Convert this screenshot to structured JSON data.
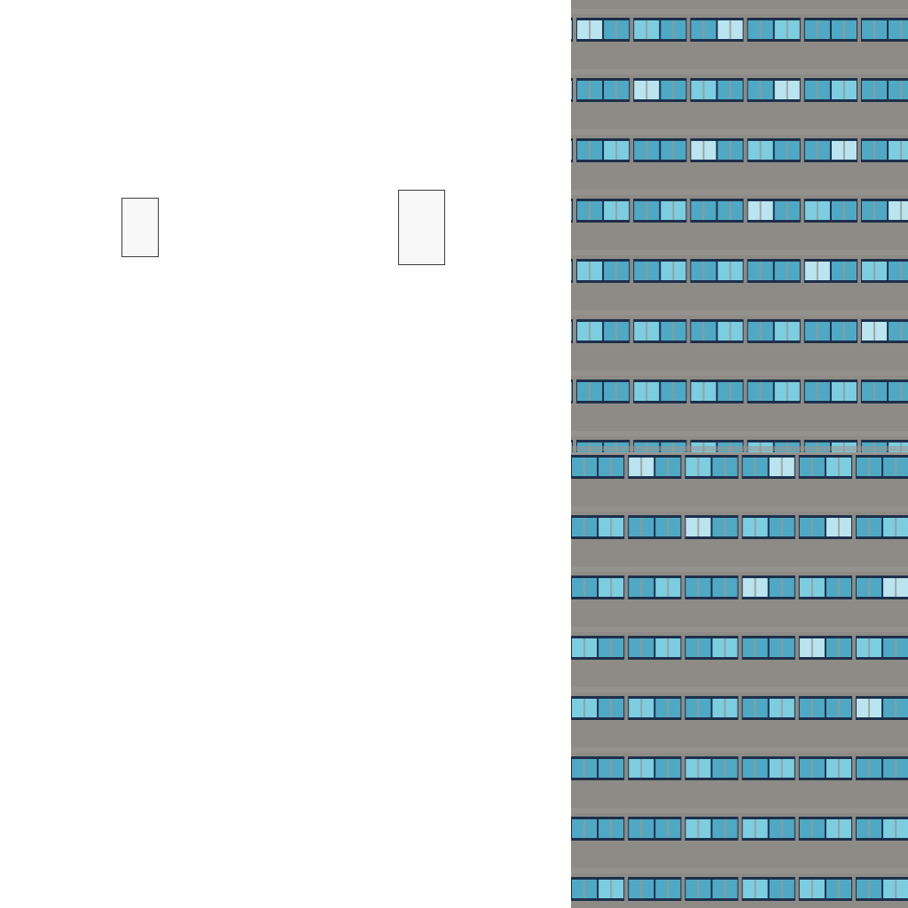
{
  "image": {
    "left_panel": {
      "background_color": "#ffffff",
      "placeholder_frames": [
        {
          "name": "small-blank-frame"
        },
        {
          "name": "large-blank-frame"
        }
      ]
    },
    "right_panel": {
      "subject": "building-facade-texture",
      "concrete_color": "#8e8b86",
      "concrete_light_color": "#9a9792",
      "mullion_color": "#1c2f4a",
      "glass_color": "#4fa9c4",
      "glass_light_color": "#7ccde0",
      "glass_highlight_color": "#b9e4f0",
      "tile_count": 2
    }
  }
}
